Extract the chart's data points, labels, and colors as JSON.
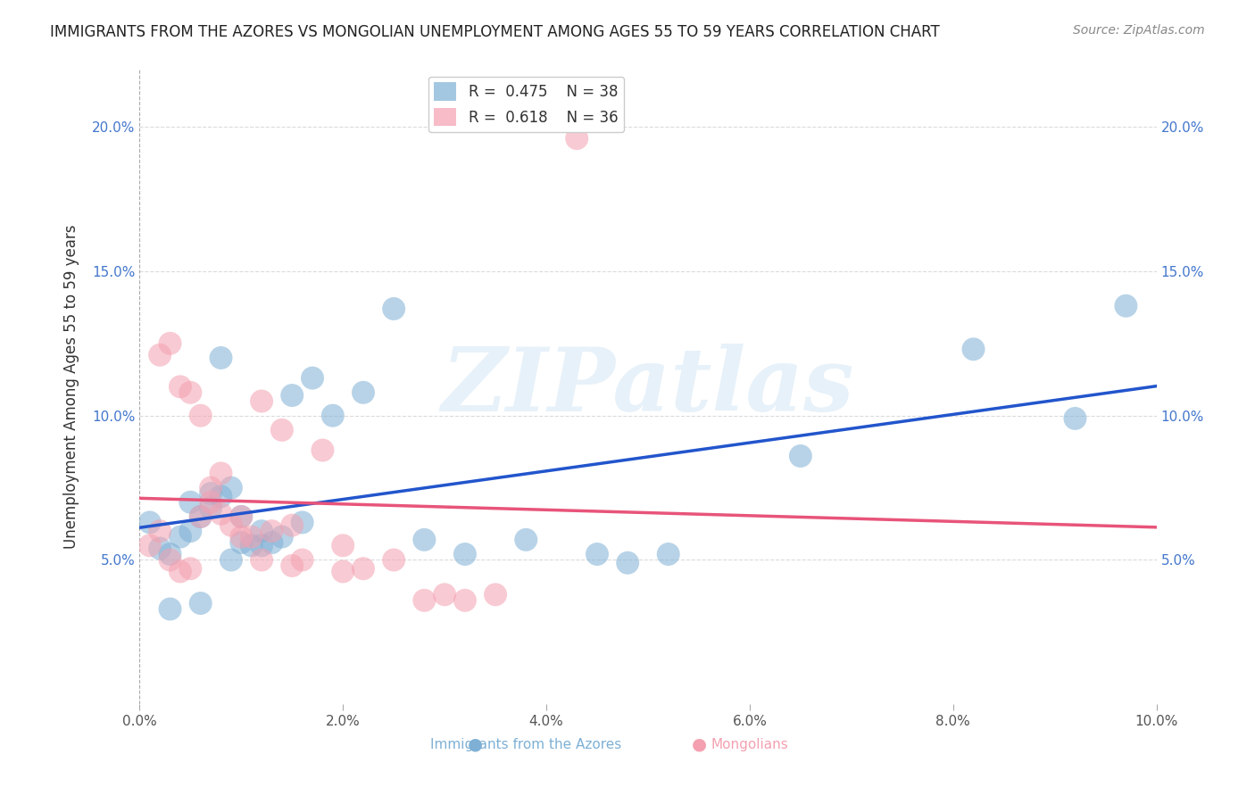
{
  "title": "IMMIGRANTS FROM THE AZORES VS MONGOLIAN UNEMPLOYMENT AMONG AGES 55 TO 59 YEARS CORRELATION CHART",
  "source": "Source: ZipAtlas.com",
  "xlabel_bottom": "",
  "ylabel": "Unemployment Among Ages 55 to 59 years",
  "xlim": [
    0,
    0.1
  ],
  "ylim": [
    0,
    0.22
  ],
  "xticks": [
    0.0,
    0.02,
    0.04,
    0.06,
    0.08,
    0.1
  ],
  "yticks": [
    0.05,
    0.1,
    0.15,
    0.2
  ],
  "xtick_labels": [
    "0.0%",
    "2.0%",
    "4.0%",
    "6.0%",
    "8.0%",
    "10.0%"
  ],
  "ytick_labels": [
    "5.0%",
    "10.0%",
    "15.0%",
    "20.0%"
  ],
  "legend_labels": [
    "Immigrants from the Azores",
    "Mongolians"
  ],
  "legend_R": [
    "0.475",
    "0.618"
  ],
  "legend_N": [
    "38",
    "36"
  ],
  "blue_color": "#7eb0d5",
  "pink_color": "#f4a0b0",
  "blue_line_color": "#2255cc",
  "pink_line_color": "#e8547a",
  "watermark": "ZIPatlas",
  "blue_scatter_x": [
    0.001,
    0.002,
    0.003,
    0.004,
    0.005,
    0.006,
    0.007,
    0.008,
    0.009,
    0.01,
    0.011,
    0.012,
    0.013,
    0.014,
    0.015,
    0.017,
    0.019,
    0.022,
    0.025,
    0.028,
    0.032,
    0.038,
    0.045,
    0.005,
    0.007,
    0.009,
    0.012,
    0.016,
    0.003,
    0.006,
    0.048,
    0.052,
    0.065,
    0.082,
    0.092,
    0.097,
    0.008,
    0.01
  ],
  "blue_scatter_y": [
    0.063,
    0.054,
    0.052,
    0.058,
    0.06,
    0.065,
    0.068,
    0.072,
    0.075,
    0.065,
    0.055,
    0.06,
    0.056,
    0.058,
    0.107,
    0.113,
    0.1,
    0.108,
    0.137,
    0.057,
    0.052,
    0.057,
    0.052,
    0.07,
    0.073,
    0.05,
    0.055,
    0.063,
    0.033,
    0.035,
    0.049,
    0.052,
    0.086,
    0.123,
    0.099,
    0.138,
    0.12,
    0.056
  ],
  "pink_scatter_x": [
    0.001,
    0.002,
    0.003,
    0.004,
    0.005,
    0.006,
    0.007,
    0.008,
    0.009,
    0.01,
    0.011,
    0.012,
    0.013,
    0.014,
    0.015,
    0.016,
    0.018,
    0.02,
    0.022,
    0.025,
    0.028,
    0.03,
    0.032,
    0.035,
    0.002,
    0.003,
    0.004,
    0.005,
    0.006,
    0.007,
    0.008,
    0.01,
    0.012,
    0.015,
    0.02,
    0.043
  ],
  "pink_scatter_y": [
    0.055,
    0.06,
    0.05,
    0.046,
    0.047,
    0.065,
    0.075,
    0.08,
    0.062,
    0.058,
    0.058,
    0.105,
    0.06,
    0.095,
    0.048,
    0.05,
    0.088,
    0.055,
    0.047,
    0.05,
    0.036,
    0.038,
    0.036,
    0.038,
    0.121,
    0.125,
    0.11,
    0.108,
    0.1,
    0.07,
    0.066,
    0.065,
    0.05,
    0.062,
    0.046,
    0.196
  ]
}
